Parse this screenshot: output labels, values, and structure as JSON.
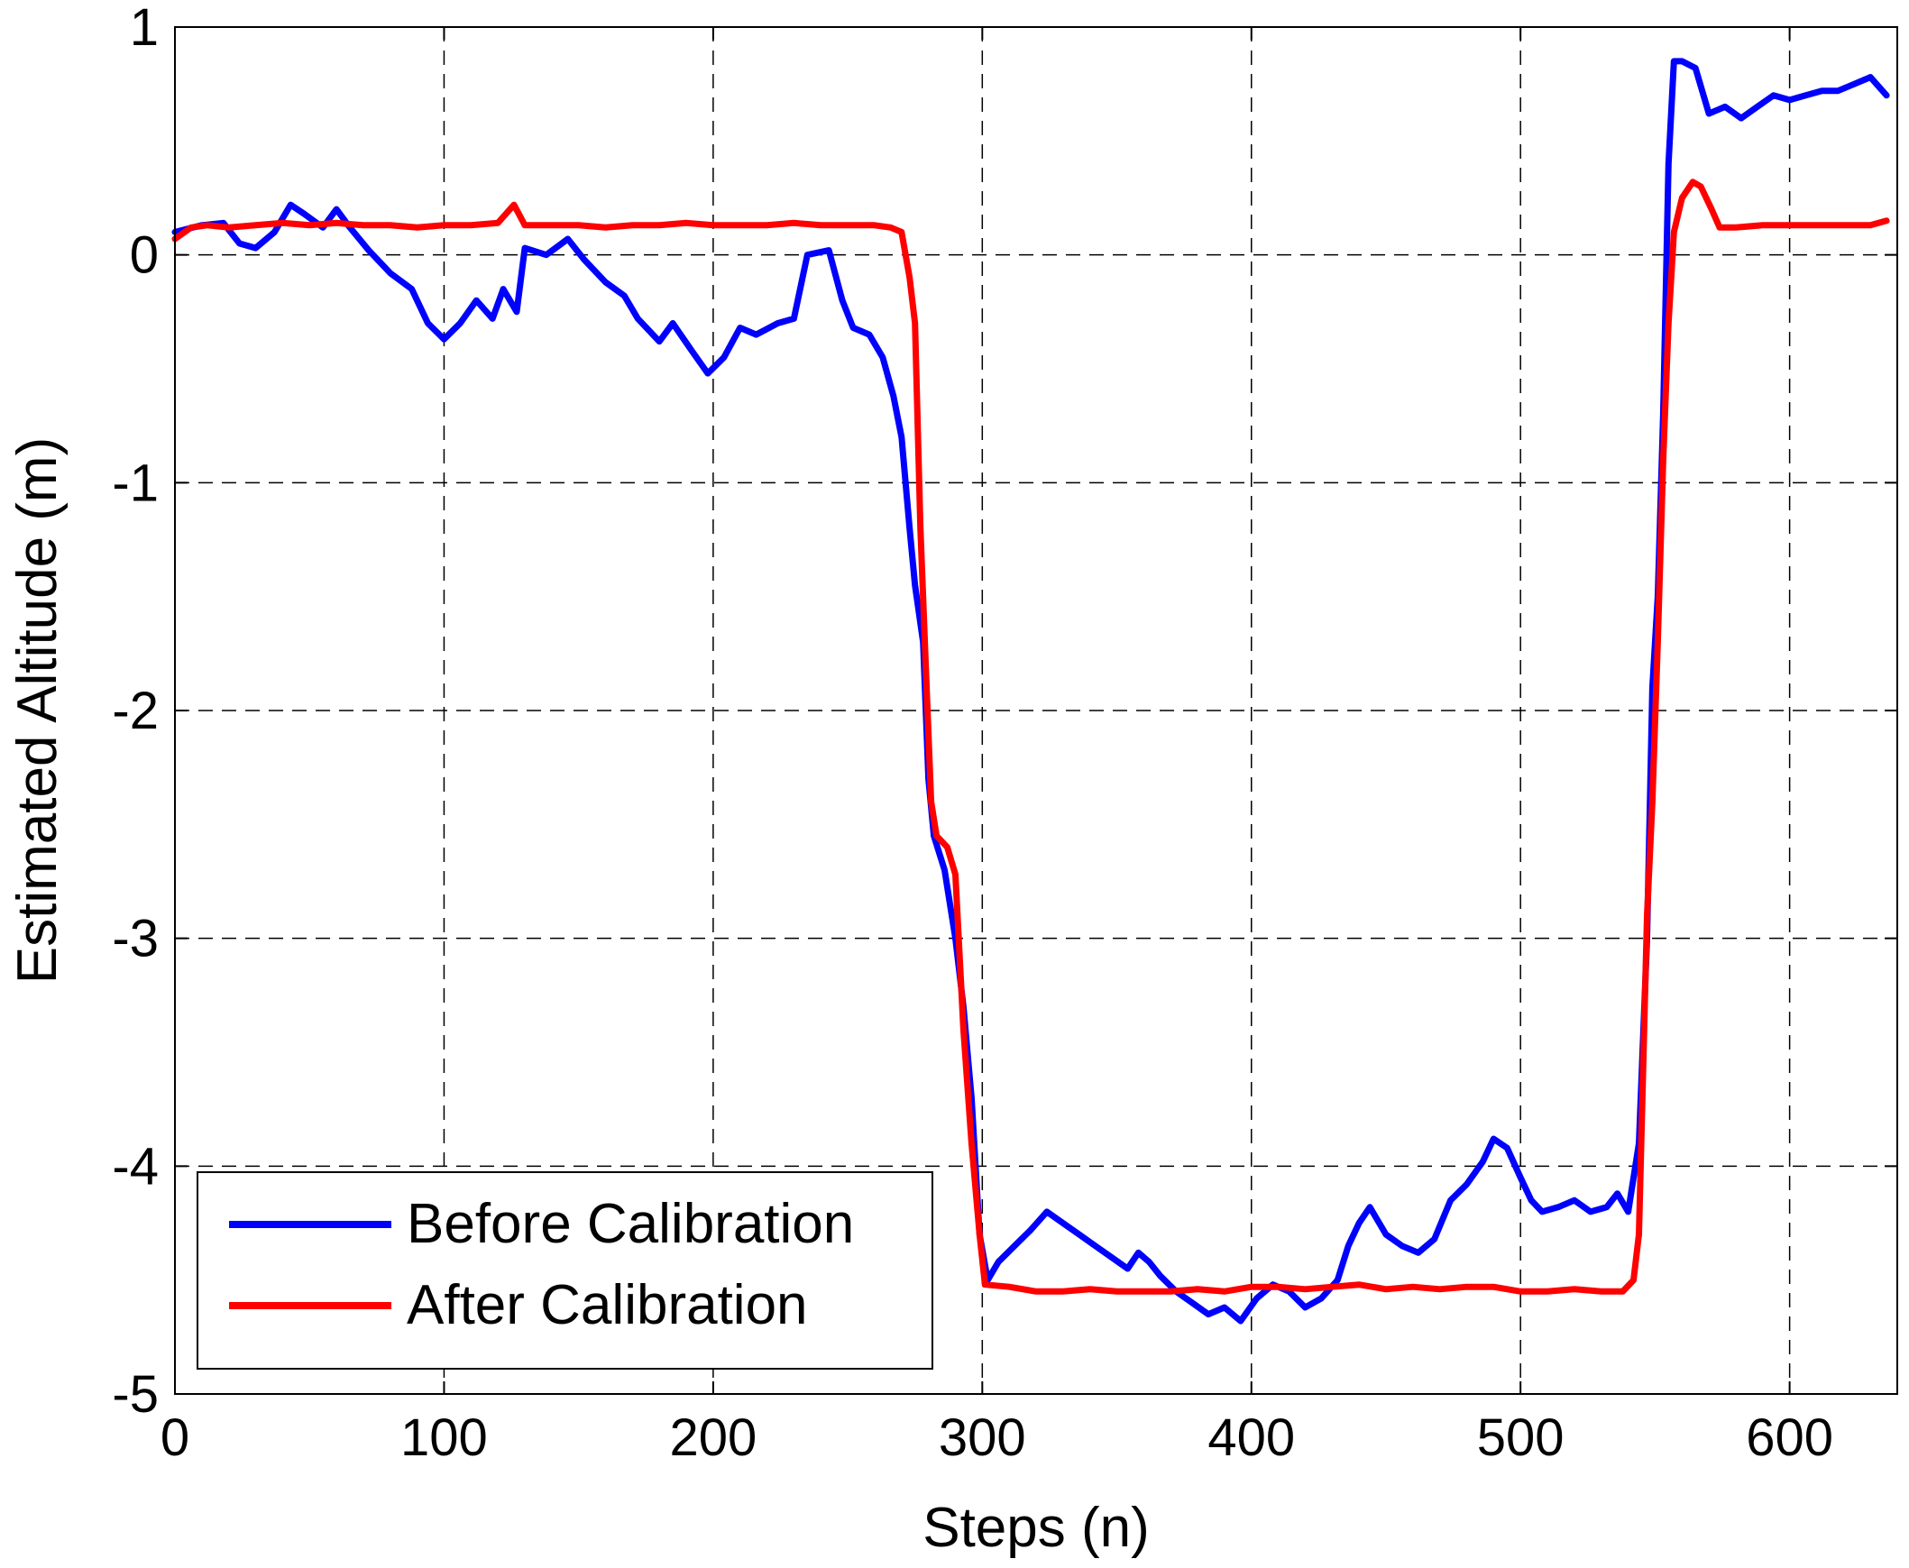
{
  "chart_data": {
    "type": "line",
    "title": "",
    "xlabel": "Steps (n)",
    "ylabel": "Estimated Altitude (m)",
    "xlim": [
      0,
      640
    ],
    "ylim": [
      -5,
      1
    ],
    "xticks": [
      0,
      100,
      200,
      300,
      400,
      500,
      600
    ],
    "yticks": [
      -5,
      -4,
      -3,
      -2,
      -1,
      0,
      1
    ],
    "xtick_labels": [
      "0",
      "100",
      "200",
      "300",
      "400",
      "500",
      "600"
    ],
    "ytick_labels": [
      "-5",
      "-4",
      "-3",
      "-2",
      "-1",
      "0",
      "1"
    ],
    "grid": true,
    "legend_position": "bottom-left",
    "series": [
      {
        "name": "Before Calibration",
        "color": "#0000ff",
        "points": [
          [
            0,
            0.1
          ],
          [
            10,
            0.13
          ],
          [
            18,
            0.14
          ],
          [
            24,
            0.05
          ],
          [
            30,
            0.03
          ],
          [
            37,
            0.1
          ],
          [
            43,
            0.22
          ],
          [
            48,
            0.18
          ],
          [
            55,
            0.12
          ],
          [
            60,
            0.2
          ],
          [
            65,
            0.12
          ],
          [
            72,
            0.02
          ],
          [
            80,
            -0.08
          ],
          [
            88,
            -0.15
          ],
          [
            94,
            -0.3
          ],
          [
            100,
            -0.37
          ],
          [
            106,
            -0.3
          ],
          [
            112,
            -0.2
          ],
          [
            118,
            -0.28
          ],
          [
            122,
            -0.15
          ],
          [
            127,
            -0.25
          ],
          [
            130,
            0.03
          ],
          [
            138,
            0.0
          ],
          [
            146,
            0.07
          ],
          [
            152,
            -0.02
          ],
          [
            160,
            -0.12
          ],
          [
            167,
            -0.18
          ],
          [
            172,
            -0.28
          ],
          [
            180,
            -0.38
          ],
          [
            185,
            -0.3
          ],
          [
            192,
            -0.42
          ],
          [
            198,
            -0.52
          ],
          [
            204,
            -0.45
          ],
          [
            210,
            -0.32
          ],
          [
            216,
            -0.35
          ],
          [
            224,
            -0.3
          ],
          [
            230,
            -0.28
          ],
          [
            235,
            0.0
          ],
          [
            243,
            0.02
          ],
          [
            248,
            -0.2
          ],
          [
            252,
            -0.32
          ],
          [
            258,
            -0.35
          ],
          [
            263,
            -0.45
          ],
          [
            267,
            -0.62
          ],
          [
            270,
            -0.8
          ],
          [
            273,
            -1.2
          ],
          [
            275,
            -1.45
          ],
          [
            278,
            -1.7
          ],
          [
            280,
            -2.3
          ],
          [
            282,
            -2.55
          ],
          [
            286,
            -2.7
          ],
          [
            290,
            -3.0
          ],
          [
            293,
            -3.3
          ],
          [
            296,
            -3.7
          ],
          [
            299,
            -4.3
          ],
          [
            302,
            -4.5
          ],
          [
            306,
            -4.42
          ],
          [
            312,
            -4.35
          ],
          [
            318,
            -4.28
          ],
          [
            324,
            -4.2
          ],
          [
            330,
            -4.25
          ],
          [
            336,
            -4.3
          ],
          [
            342,
            -4.35
          ],
          [
            348,
            -4.4
          ],
          [
            354,
            -4.45
          ],
          [
            358,
            -4.38
          ],
          [
            362,
            -4.42
          ],
          [
            366,
            -4.48
          ],
          [
            372,
            -4.55
          ],
          [
            378,
            -4.6
          ],
          [
            384,
            -4.65
          ],
          [
            390,
            -4.62
          ],
          [
            396,
            -4.68
          ],
          [
            402,
            -4.58
          ],
          [
            408,
            -4.52
          ],
          [
            414,
            -4.55
          ],
          [
            420,
            -4.62
          ],
          [
            426,
            -4.58
          ],
          [
            432,
            -4.5
          ],
          [
            436,
            -4.35
          ],
          [
            440,
            -4.25
          ],
          [
            444,
            -4.18
          ],
          [
            450,
            -4.3
          ],
          [
            456,
            -4.35
          ],
          [
            462,
            -4.38
          ],
          [
            468,
            -4.32
          ],
          [
            474,
            -4.15
          ],
          [
            480,
            -4.08
          ],
          [
            486,
            -3.98
          ],
          [
            490,
            -3.88
          ],
          [
            495,
            -3.92
          ],
          [
            500,
            -4.05
          ],
          [
            504,
            -4.15
          ],
          [
            508,
            -4.2
          ],
          [
            514,
            -4.18
          ],
          [
            520,
            -4.15
          ],
          [
            526,
            -4.2
          ],
          [
            532,
            -4.18
          ],
          [
            536,
            -4.12
          ],
          [
            540,
            -4.2
          ],
          [
            544,
            -3.9
          ],
          [
            547,
            -3.0
          ],
          [
            549,
            -1.9
          ],
          [
            551,
            -1.5
          ],
          [
            553,
            -0.7
          ],
          [
            555,
            0.4
          ],
          [
            557,
            0.85
          ],
          [
            560,
            0.85
          ],
          [
            565,
            0.82
          ],
          [
            570,
            0.62
          ],
          [
            576,
            0.65
          ],
          [
            582,
            0.6
          ],
          [
            588,
            0.65
          ],
          [
            594,
            0.7
          ],
          [
            600,
            0.68
          ],
          [
            606,
            0.7
          ],
          [
            612,
            0.72
          ],
          [
            618,
            0.72
          ],
          [
            624,
            0.75
          ],
          [
            630,
            0.78
          ],
          [
            636,
            0.7
          ]
        ]
      },
      {
        "name": "After Calibration",
        "color": "#ff0000",
        "points": [
          [
            0,
            0.07
          ],
          [
            6,
            0.12
          ],
          [
            12,
            0.13
          ],
          [
            20,
            0.12
          ],
          [
            30,
            0.13
          ],
          [
            40,
            0.14
          ],
          [
            50,
            0.13
          ],
          [
            60,
            0.14
          ],
          [
            70,
            0.13
          ],
          [
            80,
            0.13
          ],
          [
            90,
            0.12
          ],
          [
            100,
            0.13
          ],
          [
            110,
            0.13
          ],
          [
            120,
            0.14
          ],
          [
            126,
            0.22
          ],
          [
            130,
            0.13
          ],
          [
            140,
            0.13
          ],
          [
            150,
            0.13
          ],
          [
            160,
            0.12
          ],
          [
            170,
            0.13
          ],
          [
            180,
            0.13
          ],
          [
            190,
            0.14
          ],
          [
            200,
            0.13
          ],
          [
            210,
            0.13
          ],
          [
            220,
            0.13
          ],
          [
            230,
            0.14
          ],
          [
            240,
            0.13
          ],
          [
            250,
            0.13
          ],
          [
            260,
            0.13
          ],
          [
            266,
            0.12
          ],
          [
            270,
            0.1
          ],
          [
            273,
            -0.1
          ],
          [
            275,
            -0.3
          ],
          [
            277,
            -1.2
          ],
          [
            279,
            -1.8
          ],
          [
            281,
            -2.4
          ],
          [
            283,
            -2.55
          ],
          [
            287,
            -2.6
          ],
          [
            290,
            -2.72
          ],
          [
            293,
            -3.4
          ],
          [
            296,
            -3.9
          ],
          [
            299,
            -4.3
          ],
          [
            301,
            -4.52
          ],
          [
            310,
            -4.53
          ],
          [
            320,
            -4.55
          ],
          [
            330,
            -4.55
          ],
          [
            340,
            -4.54
          ],
          [
            350,
            -4.55
          ],
          [
            360,
            -4.55
          ],
          [
            370,
            -4.55
          ],
          [
            380,
            -4.54
          ],
          [
            390,
            -4.55
          ],
          [
            400,
            -4.53
          ],
          [
            410,
            -4.53
          ],
          [
            420,
            -4.54
          ],
          [
            430,
            -4.53
          ],
          [
            440,
            -4.52
          ],
          [
            450,
            -4.54
          ],
          [
            460,
            -4.53
          ],
          [
            470,
            -4.54
          ],
          [
            480,
            -4.53
          ],
          [
            490,
            -4.53
          ],
          [
            500,
            -4.55
          ],
          [
            510,
            -4.55
          ],
          [
            520,
            -4.54
          ],
          [
            530,
            -4.55
          ],
          [
            538,
            -4.55
          ],
          [
            542,
            -4.5
          ],
          [
            544,
            -4.3
          ],
          [
            547,
            -2.9
          ],
          [
            549,
            -2.4
          ],
          [
            551,
            -1.7
          ],
          [
            553,
            -0.9
          ],
          [
            555,
            -0.3
          ],
          [
            557,
            0.1
          ],
          [
            560,
            0.25
          ],
          [
            564,
            0.32
          ],
          [
            567,
            0.3
          ],
          [
            571,
            0.2
          ],
          [
            574,
            0.12
          ],
          [
            580,
            0.12
          ],
          [
            590,
            0.13
          ],
          [
            600,
            0.13
          ],
          [
            610,
            0.13
          ],
          [
            620,
            0.13
          ],
          [
            630,
            0.13
          ],
          [
            636,
            0.15
          ]
        ]
      }
    ]
  }
}
